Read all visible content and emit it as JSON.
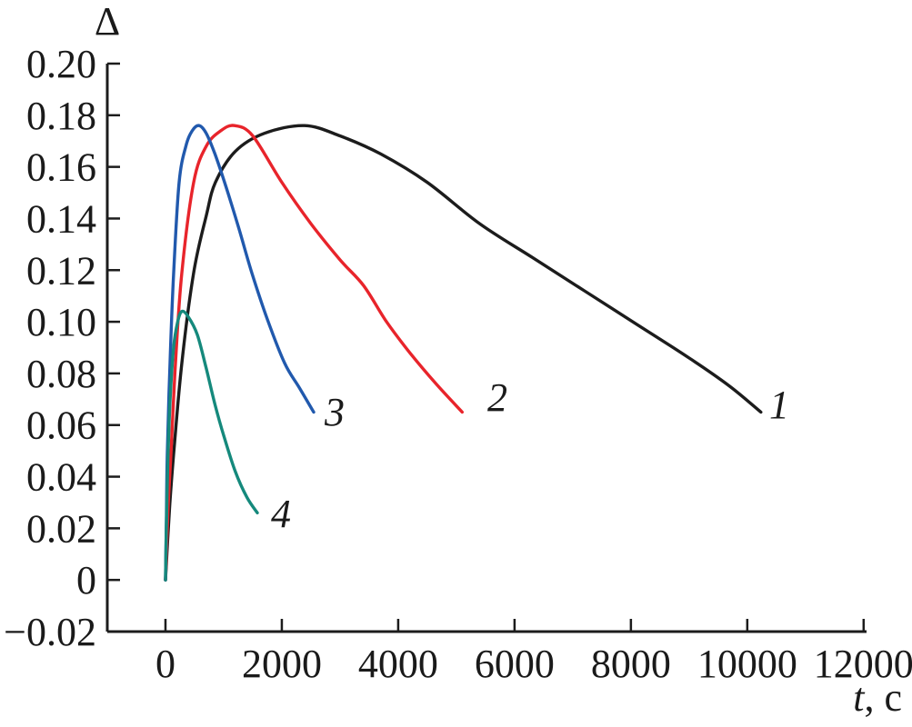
{
  "chart_data": {
    "type": "line",
    "title": "",
    "xlabel": "t, с",
    "xlabel_variable": "t",
    "xlabel_unit": "с",
    "ylabel": "Δ",
    "xlim": [
      -1000,
      12050
    ],
    "ylim": [
      -0.02,
      0.2
    ],
    "grid": false,
    "legend_position": "inline-labels",
    "axis_color": "#1c1c1c",
    "text_color": "#1a1a1a",
    "x_ticks": {
      "values": [
        0,
        2000,
        4000,
        6000,
        8000,
        10000,
        12000
      ],
      "labels": [
        "0",
        "2000",
        "4000",
        "6000",
        "8000",
        "10000",
        "12000"
      ]
    },
    "y_ticks": {
      "values": [
        -0.02,
        0,
        0.02,
        0.04,
        0.06,
        0.08,
        0.1,
        0.12,
        0.14,
        0.16,
        0.18,
        0.2
      ],
      "labels": [
        "−0.02",
        "0",
        "0.02",
        "0.04",
        "0.06",
        "0.08",
        "0.10",
        "0.12",
        "0.14",
        "0.16",
        "0.18",
        "0.20"
      ]
    },
    "series": [
      {
        "name": "curve-1",
        "label": "1",
        "color": "#1c1c1c",
        "peak": {
          "t": 2390,
          "delta": 0.176
        },
        "end": {
          "t": 10234,
          "delta": 0.065
        },
        "label_pos": {
          "t": 10550,
          "delta": 0.0627
        },
        "points": {
          "t": [
            0,
            70,
            141,
            281,
            484,
            700,
            859,
            1200,
            1700,
            2391,
            3000,
            3700,
            4500,
            5400,
            6300,
            7200,
            8100,
            9000,
            9700,
            10234
          ],
          "delta": [
            0,
            0.028,
            0.049,
            0.084,
            0.119,
            0.141,
            0.154,
            0.166,
            0.173,
            0.176,
            0.172,
            0.165,
            0.154,
            0.138,
            0.125,
            0.112,
            0.099,
            0.086,
            0.075,
            0.065
          ]
        }
      },
      {
        "name": "curve-2",
        "label": "2",
        "color": "#e8242b",
        "peak": {
          "t": 1190,
          "delta": 0.176
        },
        "end": {
          "t": 5100,
          "delta": 0.065
        },
        "label_pos": {
          "t": 5705,
          "delta": 0.0655
        },
        "points": {
          "t": [
            0,
            45,
            94,
            172,
            281,
            484,
            700,
            950,
            1188,
            1500,
            2000,
            2500,
            3000,
            3406,
            3800,
            4200,
            4650,
            5100
          ],
          "delta": [
            0,
            0.028,
            0.049,
            0.084,
            0.119,
            0.154,
            0.168,
            0.174,
            0.176,
            0.172,
            0.154,
            0.138,
            0.124,
            0.114,
            0.1,
            0.088,
            0.076,
            0.065
          ]
        }
      },
      {
        "name": "curve-3",
        "label": "3",
        "color": "#2159ad",
        "peak": {
          "t": 580,
          "delta": 0.176
        },
        "end": {
          "t": 2547,
          "delta": 0.065
        },
        "label_pos": {
          "t": 2907,
          "delta": 0.0599
        },
        "points": {
          "t": [
            0,
            16,
            31,
            78,
            141,
            234,
            350,
            460,
            578,
            700,
            850,
            1016,
            1250,
            1484,
            1750,
            2047,
            2300,
            2547
          ],
          "delta": [
            0,
            0.024,
            0.049,
            0.084,
            0.119,
            0.154,
            0.168,
            0.174,
            0.176,
            0.173,
            0.165,
            0.154,
            0.137,
            0.119,
            0.101,
            0.084,
            0.0745,
            0.065
          ]
        }
      },
      {
        "name": "curve-4",
        "label": "4",
        "color": "#15897c",
        "peak": {
          "t": 280,
          "delta": 0.104
        },
        "end": {
          "t": 1578,
          "delta": 0.026
        },
        "label_pos": {
          "t": 1985,
          "delta": 0.0205
        },
        "points": {
          "t": [
            0,
            15,
            40,
            80,
            140,
            210,
            281,
            390,
            547,
            700,
            850,
            1000,
            1200,
            1400,
            1578
          ],
          "delta": [
            0,
            0.02,
            0.045,
            0.07,
            0.09,
            0.1,
            0.104,
            0.102,
            0.095,
            0.082,
            0.068,
            0.056,
            0.042,
            0.032,
            0.026
          ]
        }
      }
    ]
  }
}
